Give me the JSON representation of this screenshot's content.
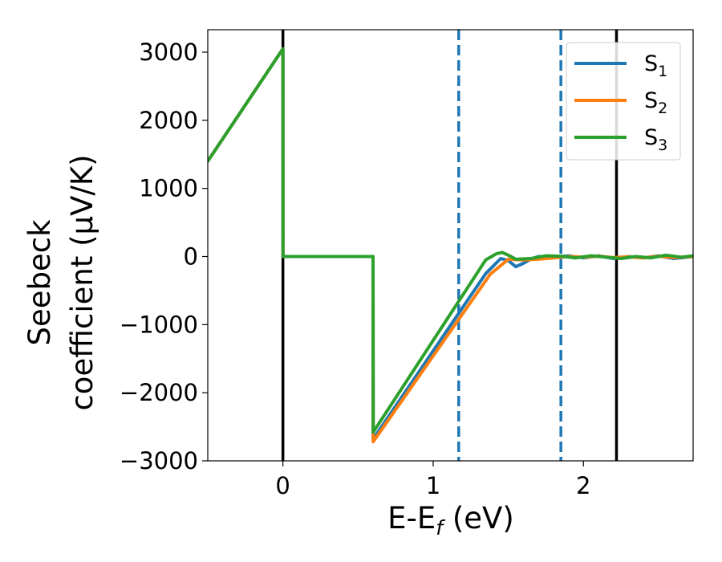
{
  "chart_data": {
    "type": "line",
    "xlabel": "E-E",
    "xlabel_sub": "f",
    "xlabel_unit": " (eV)",
    "ylabel_line1": "Seebeck",
    "ylabel_line2": "coefficient  (μV/K)",
    "xlim": [
      -0.5,
      2.73
    ],
    "ylim": [
      -3000,
      3330
    ],
    "xticks": [
      {
        "value": 0,
        "label": "0"
      },
      {
        "value": 1,
        "label": "1"
      },
      {
        "value": 2,
        "label": "2"
      }
    ],
    "yticks": [
      {
        "value": 3000,
        "label": "3000"
      },
      {
        "value": 2000,
        "label": "2000"
      },
      {
        "value": 1000,
        "label": "1000"
      },
      {
        "value": 0,
        "label": "0"
      },
      {
        "value": -1000,
        "label": "−1000"
      },
      {
        "value": -2000,
        "label": "−2000"
      },
      {
        "value": -3000,
        "label": "−3000"
      }
    ],
    "grid": false,
    "legend_position": "top-right",
    "vlines": [
      {
        "x": 0,
        "style": "solid",
        "color": "#000000"
      },
      {
        "x": 2.22,
        "style": "solid",
        "color": "#000000"
      },
      {
        "x": 1.17,
        "style": "dashed",
        "color": "#1f77b4"
      },
      {
        "x": 1.85,
        "style": "dashed",
        "color": "#1f77b4"
      }
    ],
    "series": [
      {
        "name": "S",
        "sub": "1",
        "color": "#1f77b4",
        "points": [
          [
            -0.5,
            1400
          ],
          [
            0,
            3050
          ],
          [
            0.001,
            0
          ],
          [
            0.6,
            0
          ],
          [
            0.601,
            -2680
          ],
          [
            1.35,
            -250
          ],
          [
            1.45,
            -30
          ],
          [
            1.5,
            -60
          ],
          [
            1.55,
            -150
          ],
          [
            1.6,
            -100
          ],
          [
            1.65,
            -40
          ],
          [
            1.7,
            0
          ],
          [
            1.8,
            -10
          ],
          [
            1.9,
            10
          ],
          [
            2.0,
            -20
          ],
          [
            2.1,
            10
          ],
          [
            2.2,
            -30
          ],
          [
            2.3,
            0
          ],
          [
            2.4,
            -20
          ],
          [
            2.5,
            10
          ],
          [
            2.6,
            -30
          ],
          [
            2.73,
            0
          ]
        ]
      },
      {
        "name": "S",
        "sub": "2",
        "color": "#ff7f0e",
        "points": [
          [
            -0.5,
            1400
          ],
          [
            0,
            3050
          ],
          [
            0.001,
            0
          ],
          [
            0.6,
            0
          ],
          [
            0.601,
            -2720
          ],
          [
            1.38,
            -260
          ],
          [
            1.5,
            -40
          ],
          [
            1.6,
            -50
          ],
          [
            1.7,
            -40
          ],
          [
            1.8,
            -20
          ],
          [
            1.9,
            0
          ],
          [
            2.0,
            -10
          ],
          [
            2.1,
            5
          ],
          [
            2.2,
            -15
          ],
          [
            2.3,
            -5
          ],
          [
            2.4,
            -20
          ],
          [
            2.5,
            5
          ],
          [
            2.6,
            -15
          ],
          [
            2.73,
            0
          ]
        ]
      },
      {
        "name": "S",
        "sub": "3",
        "color": "#2ca02c",
        "points": [
          [
            -0.5,
            1400
          ],
          [
            0,
            3050
          ],
          [
            0.001,
            0
          ],
          [
            0.6,
            0
          ],
          [
            0.601,
            -2580
          ],
          [
            1.35,
            -50
          ],
          [
            1.42,
            40
          ],
          [
            1.46,
            60
          ],
          [
            1.5,
            20
          ],
          [
            1.55,
            -40
          ],
          [
            1.65,
            -30
          ],
          [
            1.75,
            10
          ],
          [
            1.85,
            5
          ],
          [
            1.95,
            -20
          ],
          [
            2.05,
            10
          ],
          [
            2.15,
            -10
          ],
          [
            2.25,
            -30
          ],
          [
            2.35,
            0
          ],
          [
            2.45,
            -20
          ],
          [
            2.55,
            20
          ],
          [
            2.65,
            -10
          ],
          [
            2.73,
            10
          ]
        ]
      }
    ]
  }
}
